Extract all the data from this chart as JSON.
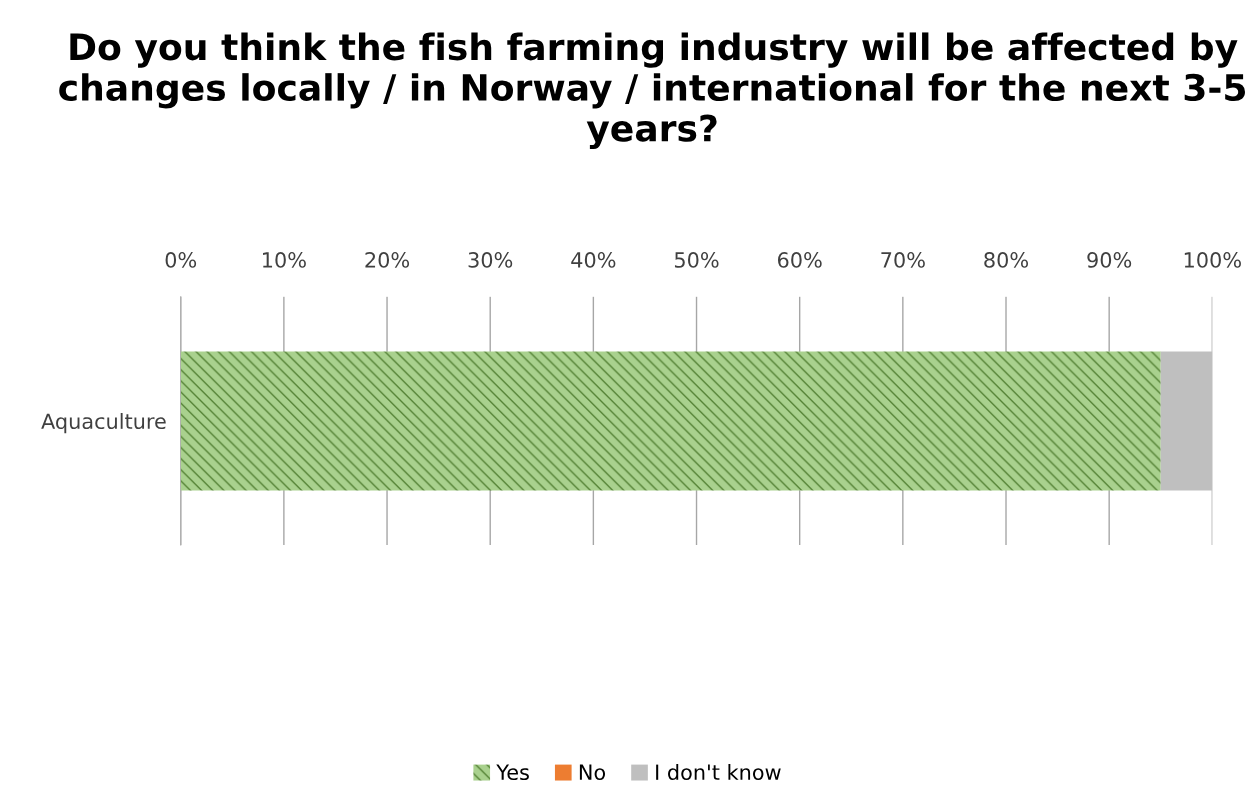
{
  "chart_data": {
    "type": "bar",
    "orientation": "horizontal",
    "stacked": true,
    "title": "Do you think the fish farming industry will be affected by changes locally / in Norway / international for the next 3-5 years?",
    "categories": [
      "Aquaculture"
    ],
    "series": [
      {
        "name": "Yes",
        "color": "#a9d18e",
        "values": [
          95
        ]
      },
      {
        "name": "No",
        "color": "#ed7d31",
        "values": [
          0
        ]
      },
      {
        "name": "I don't know",
        "color": "#bfbfbf",
        "values": [
          5
        ]
      }
    ],
    "xlim": [
      0,
      100
    ],
    "xticks": [
      {
        "value": 0,
        "label": "0%"
      },
      {
        "value": 10,
        "label": "10%"
      },
      {
        "value": 20,
        "label": "20%"
      },
      {
        "value": 30,
        "label": "30%"
      },
      {
        "value": 40,
        "label": "40%"
      },
      {
        "value": 50,
        "label": "50%"
      },
      {
        "value": 60,
        "label": "60%"
      },
      {
        "value": 70,
        "label": "70%"
      },
      {
        "value": 80,
        "label": "80%"
      },
      {
        "value": 90,
        "label": "90%"
      },
      {
        "value": 100,
        "label": "100%"
      }
    ],
    "grid": "x",
    "legend": "bottom"
  }
}
